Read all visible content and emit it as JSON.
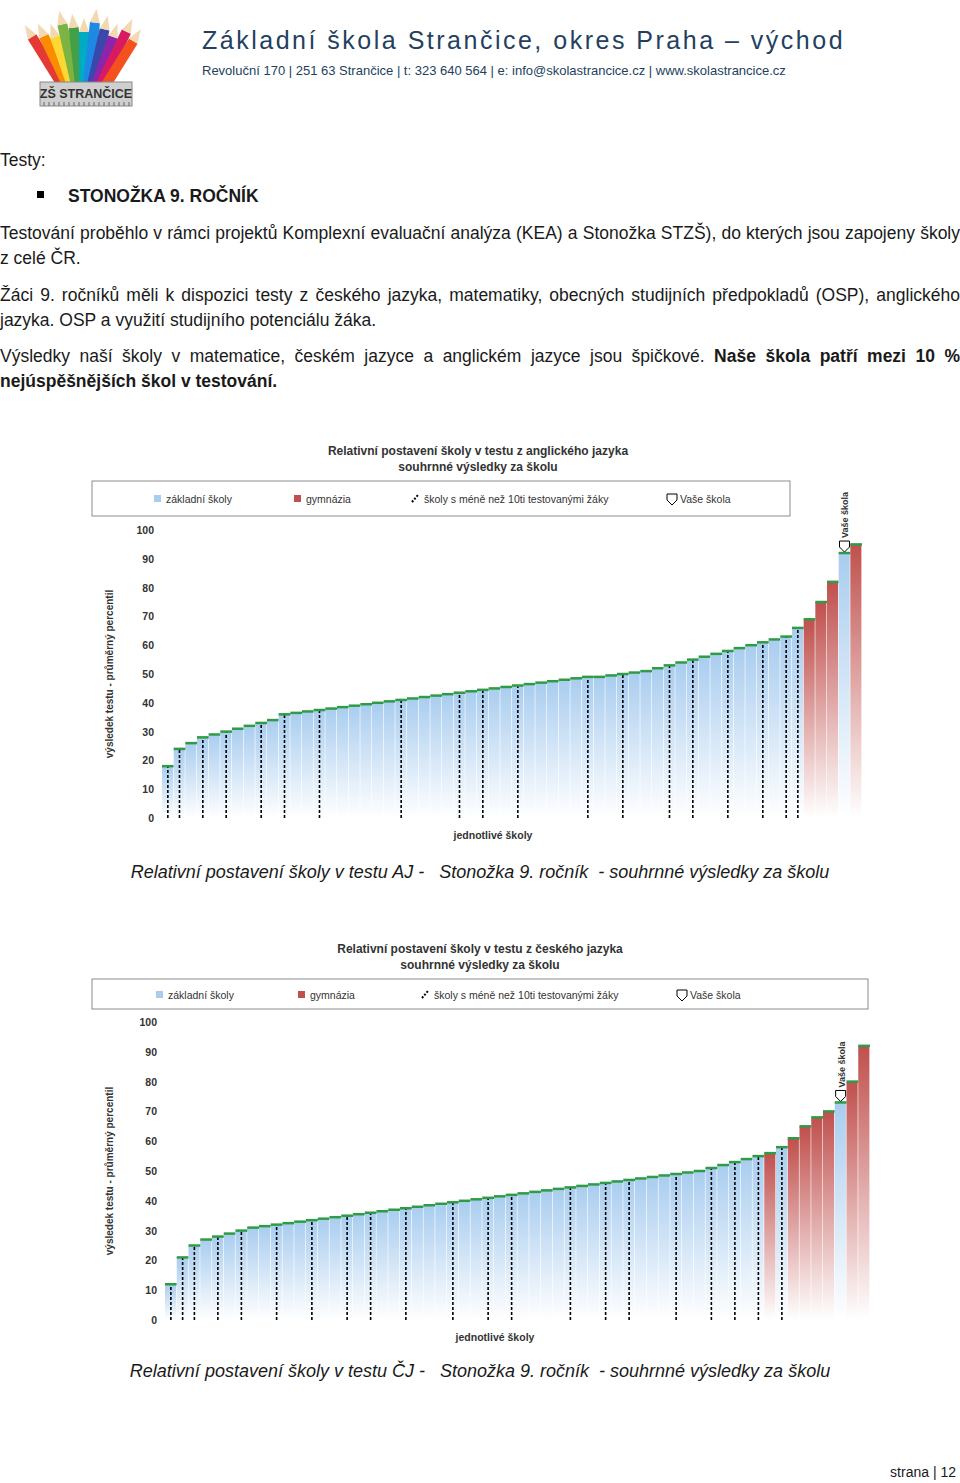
{
  "header": {
    "logo_text": "ZŠ STRANČICE",
    "school": "Základní škola Strančice, okres Praha – východ",
    "contact": "Revoluční 170 | 251 63 Strančice | t: 323 640 564 | e: info@skolastrancice.cz | www.skolastrancice.cz"
  },
  "body": {
    "section_label": "Testy:",
    "bullet": "STONOŽKA 9. ROČNÍK",
    "paragraphs": [
      {
        "text": "Testování proběhlo v rámci projektů Komplexní evaluační analýza (KEA) a Stonožka STZŠ), do kterých jsou zapojeny školy z celé ČR."
      },
      {
        "text": "Žáci 9. ročníků měli k dispozici testy z českého jazyka, matematiky, obecných studijních předpokladů (OSP), anglického jazyka. OSP a využití studijního potenciálu žáka."
      },
      {
        "text": "Výsledky naší školy v matematice, českém jazyce a anglickém jazyce jsou špičkové. ",
        "bold": "Naše škola patří mezi 10 % nejúspěšnějších škol v testování."
      }
    ]
  },
  "chart_data": [
    {
      "type": "bar",
      "title": "Relativní postavení školy v testu z anglického jazyka",
      "subtitle": "souhrnné výsledky za školu",
      "y_label": "výsledek testu - průměrný percentil",
      "x_label": "jednotlivé školy",
      "annotation": "Vaše škola",
      "ylim": [
        0,
        100
      ],
      "yticks": [
        0,
        10,
        20,
        30,
        40,
        50,
        60,
        70,
        80,
        90,
        100
      ],
      "grid": false,
      "legend": "top",
      "tick_labels": "y",
      "categories": [
        null,
        null,
        null,
        null,
        null,
        null,
        null,
        null,
        null,
        null,
        null,
        null,
        null,
        null,
        null,
        null,
        null,
        null,
        null,
        null,
        null,
        null,
        null,
        null,
        null,
        null,
        null,
        null,
        null,
        null,
        null,
        null,
        null,
        null,
        null,
        null,
        null,
        null,
        null,
        null,
        null,
        null,
        null,
        null,
        null,
        null,
        null,
        null,
        null,
        null,
        null,
        null,
        null,
        null,
        null,
        null,
        null,
        null,
        null,
        null
      ],
      "series": [
        {
          "name": "základní školy",
          "color": "#a9cdef",
          "values": [
            null,
            null,
            26,
            null,
            29,
            null,
            31,
            32,
            null,
            34,
            null,
            36.5,
            37,
            null,
            38,
            38.5,
            39,
            39.5,
            40,
            40.5,
            null,
            41.5,
            42,
            42.5,
            43,
            null,
            44,
            null,
            45,
            45.5,
            null,
            46.5,
            47,
            47.5,
            48,
            48.5,
            null,
            49,
            49.5,
            null,
            50.5,
            51,
            52,
            null,
            54,
            null,
            56,
            57,
            null,
            59,
            60,
            null,
            62,
            null,
            null,
            null,
            null,
            null,
            null,
            null
          ]
        },
        {
          "name": "gymnázia",
          "color": "#c0504d",
          "values": [
            null,
            null,
            null,
            null,
            null,
            null,
            null,
            null,
            null,
            null,
            null,
            null,
            null,
            null,
            null,
            null,
            null,
            null,
            null,
            null,
            null,
            null,
            null,
            null,
            null,
            null,
            null,
            null,
            null,
            null,
            null,
            null,
            null,
            null,
            null,
            null,
            null,
            null,
            null,
            null,
            null,
            null,
            null,
            null,
            null,
            null,
            null,
            null,
            null,
            null,
            null,
            null,
            null,
            null,
            null,
            69,
            75,
            82,
            null,
            95
          ]
        },
        {
          "name": "školy s méně než 10ti testovanými žáky",
          "color": "#000000",
          "line_style": "dashed",
          "values": [
            18,
            24,
            null,
            28,
            null,
            30,
            null,
            null,
            33,
            null,
            36,
            null,
            null,
            37.5,
            null,
            null,
            null,
            null,
            null,
            null,
            41,
            null,
            null,
            null,
            null,
            43.5,
            null,
            44.5,
            null,
            null,
            46,
            null,
            null,
            null,
            null,
            null,
            49,
            null,
            null,
            50,
            null,
            null,
            null,
            53,
            null,
            55,
            null,
            null,
            58,
            null,
            null,
            61,
            null,
            63,
            66,
            null,
            null,
            null,
            null,
            null
          ]
        },
        {
          "name": "Vaše škola",
          "color": "#ffffff",
          "marker": "arrow",
          "values": [
            null,
            null,
            null,
            null,
            null,
            null,
            null,
            null,
            null,
            null,
            null,
            null,
            null,
            null,
            null,
            null,
            null,
            null,
            null,
            null,
            null,
            null,
            null,
            null,
            null,
            null,
            null,
            null,
            null,
            null,
            null,
            null,
            null,
            null,
            null,
            null,
            null,
            null,
            null,
            null,
            null,
            null,
            null,
            null,
            null,
            null,
            null,
            null,
            null,
            null,
            null,
            null,
            null,
            null,
            null,
            null,
            null,
            null,
            92,
            null
          ]
        }
      ]
    },
    {
      "type": "bar",
      "title": "Relativní postavení školy v testu z českého jazyka",
      "subtitle": "souhrnné výsledky za školu",
      "y_label": "výsledek testu - průměrný percentil",
      "x_label": "jednotlivé školy",
      "annotation": "Vaše škola",
      "ylim": [
        0,
        100
      ],
      "yticks": [
        0,
        10,
        20,
        30,
        40,
        50,
        60,
        70,
        80,
        90,
        100
      ],
      "grid": false,
      "legend": "top",
      "tick_labels": "y",
      "categories": [
        null,
        null,
        null,
        null,
        null,
        null,
        null,
        null,
        null,
        null,
        null,
        null,
        null,
        null,
        null,
        null,
        null,
        null,
        null,
        null,
        null,
        null,
        null,
        null,
        null,
        null,
        null,
        null,
        null,
        null,
        null,
        null,
        null,
        null,
        null,
        null,
        null,
        null,
        null,
        null,
        null,
        null,
        null,
        null,
        null,
        null,
        null,
        null,
        null,
        null,
        null,
        null,
        null,
        null,
        null,
        null,
        null,
        null,
        null,
        null
      ],
      "series": [
        {
          "name": "základní školy",
          "color": "#a9cdef",
          "values": [
            null,
            null,
            null,
            27,
            null,
            29,
            null,
            31,
            31.5,
            null,
            32.5,
            33,
            null,
            34,
            34.5,
            null,
            35.5,
            null,
            36.5,
            37,
            null,
            38,
            38.5,
            39,
            null,
            40,
            40.5,
            null,
            41.5,
            null,
            42.5,
            43,
            43.5,
            44,
            null,
            45,
            45.5,
            null,
            46.5,
            null,
            47.5,
            48,
            48.5,
            null,
            49.5,
            50,
            null,
            52,
            null,
            54,
            null,
            null,
            null,
            null,
            null,
            null,
            null,
            null,
            null,
            null
          ]
        },
        {
          "name": "gymnázia",
          "color": "#c0504d",
          "values": [
            null,
            null,
            null,
            null,
            null,
            null,
            null,
            null,
            null,
            null,
            null,
            null,
            null,
            null,
            null,
            null,
            null,
            null,
            null,
            null,
            null,
            null,
            null,
            null,
            null,
            null,
            null,
            null,
            null,
            null,
            null,
            null,
            null,
            null,
            null,
            null,
            null,
            null,
            null,
            null,
            null,
            null,
            null,
            null,
            null,
            null,
            null,
            null,
            null,
            null,
            null,
            56,
            null,
            61,
            65,
            68,
            70,
            null,
            80,
            92
          ]
        },
        {
          "name": "školy s méně než 10ti testovanými žáky",
          "color": "#000000",
          "line_style": "dashed",
          "values": [
            12,
            21,
            25,
            null,
            28,
            null,
            30,
            null,
            null,
            32,
            null,
            null,
            33.5,
            null,
            null,
            35,
            null,
            36,
            null,
            null,
            37.5,
            null,
            null,
            null,
            39.5,
            null,
            null,
            41,
            null,
            42,
            null,
            null,
            null,
            null,
            44.5,
            null,
            null,
            46,
            null,
            47,
            null,
            null,
            null,
            49,
            null,
            null,
            51,
            null,
            53,
            null,
            55,
            null,
            58,
            null,
            null,
            null,
            null,
            null,
            null,
            null
          ]
        },
        {
          "name": "Vaše škola",
          "color": "#ffffff",
          "marker": "arrow",
          "values": [
            null,
            null,
            null,
            null,
            null,
            null,
            null,
            null,
            null,
            null,
            null,
            null,
            null,
            null,
            null,
            null,
            null,
            null,
            null,
            null,
            null,
            null,
            null,
            null,
            null,
            null,
            null,
            null,
            null,
            null,
            null,
            null,
            null,
            null,
            null,
            null,
            null,
            null,
            null,
            null,
            null,
            null,
            null,
            null,
            null,
            null,
            null,
            null,
            null,
            null,
            null,
            null,
            null,
            null,
            null,
            null,
            null,
            73,
            null,
            null
          ]
        }
      ]
    }
  ],
  "captions": [
    "Relativní postavení školy v testu AJ -   Stonožka 9. ročník  - souhrnné výsledky za školu",
    "Relativní postavení školy v testu ČJ -   Stonožka 9. ročník  - souhrnné výsledky za školu"
  ],
  "footer": "strana | 12"
}
